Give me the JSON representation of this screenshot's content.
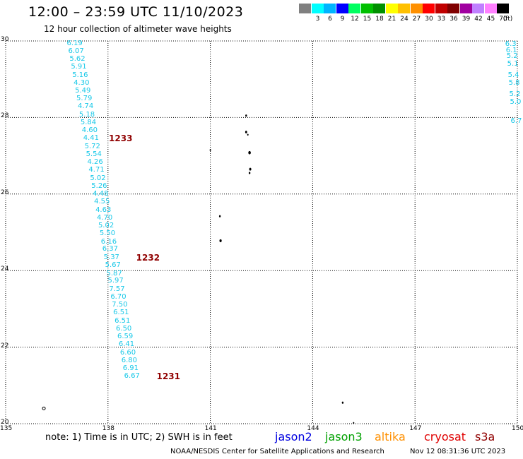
{
  "header": {
    "title": "12:00 – 23:59 UTC 11/10/2023",
    "subtitle": "12 hour collection of altimeter wave heights"
  },
  "colorbar": {
    "unit_label": "(ft)",
    "entries": [
      {
        "label": "",
        "color": "#808080"
      },
      {
        "label": "3",
        "color": "#00ffff"
      },
      {
        "label": "6",
        "color": "#00b4ff"
      },
      {
        "label": "9",
        "color": "#0000ff"
      },
      {
        "label": "12",
        "color": "#00ff60"
      },
      {
        "label": "15",
        "color": "#00c000"
      },
      {
        "label": "18",
        "color": "#009000"
      },
      {
        "label": "21",
        "color": "#ffff00"
      },
      {
        "label": "24",
        "color": "#ffc000"
      },
      {
        "label": "27",
        "color": "#ff9000"
      },
      {
        "label": "30",
        "color": "#ff0000"
      },
      {
        "label": "33",
        "color": "#c00000"
      },
      {
        "label": "36",
        "color": "#800000"
      },
      {
        "label": "39",
        "color": "#a000a0"
      },
      {
        "label": "42",
        "color": "#c080ff"
      },
      {
        "label": "45",
        "color": "#ff80ff"
      },
      {
        "label": "70",
        "color": "#000000"
      }
    ]
  },
  "map": {
    "lon_ticks": [
      "135",
      "138",
      "141",
      "144",
      "147",
      "150"
    ],
    "lat_ticks": [
      "30",
      "28",
      "26",
      "24",
      "22",
      "20"
    ],
    "lon_range": [
      135,
      150
    ],
    "lat_range": [
      20,
      30
    ],
    "wave_color": "#18c8e8",
    "time_label_color": "#900000",
    "track_main": [
      {
        "lat": 29.93,
        "lon": 137.0,
        "v": "6.19"
      },
      {
        "lat": 29.73,
        "lon": 137.04,
        "v": "6.07"
      },
      {
        "lat": 29.52,
        "lon": 137.08,
        "v": "5.62"
      },
      {
        "lat": 29.31,
        "lon": 137.12,
        "v": "5.91"
      },
      {
        "lat": 29.1,
        "lon": 137.16,
        "v": "5.16"
      },
      {
        "lat": 28.9,
        "lon": 137.2,
        "v": "4.30"
      },
      {
        "lat": 28.69,
        "lon": 137.24,
        "v": "5.49"
      },
      {
        "lat": 28.48,
        "lon": 137.28,
        "v": "5.79"
      },
      {
        "lat": 28.28,
        "lon": 137.32,
        "v": "4.74"
      },
      {
        "lat": 28.07,
        "lon": 137.36,
        "v": "5.18"
      },
      {
        "lat": 27.86,
        "lon": 137.4,
        "v": "5.84"
      },
      {
        "lat": 27.65,
        "lon": 137.44,
        "v": "4.60"
      },
      {
        "lat": 27.45,
        "lon": 137.48,
        "v": "4.41"
      },
      {
        "lat": 27.24,
        "lon": 137.52,
        "v": "5.72"
      },
      {
        "lat": 27.03,
        "lon": 137.56,
        "v": "5.54"
      },
      {
        "lat": 26.82,
        "lon": 137.6,
        "v": "4.26"
      },
      {
        "lat": 26.62,
        "lon": 137.64,
        "v": "4.71"
      },
      {
        "lat": 26.41,
        "lon": 137.68,
        "v": "5.02"
      },
      {
        "lat": 26.2,
        "lon": 137.72,
        "v": "5.26"
      },
      {
        "lat": 26.0,
        "lon": 137.76,
        "v": "4.48"
      },
      {
        "lat": 25.79,
        "lon": 137.8,
        "v": "4.55"
      },
      {
        "lat": 25.58,
        "lon": 137.84,
        "v": "4.63"
      },
      {
        "lat": 25.37,
        "lon": 137.88,
        "v": "4.70"
      },
      {
        "lat": 25.17,
        "lon": 137.92,
        "v": "5.02"
      },
      {
        "lat": 24.96,
        "lon": 137.96,
        "v": "5.50"
      },
      {
        "lat": 24.75,
        "lon": 138.0,
        "v": "6.16"
      },
      {
        "lat": 24.55,
        "lon": 138.04,
        "v": "6.37"
      },
      {
        "lat": 24.34,
        "lon": 138.08,
        "v": "5.37"
      },
      {
        "lat": 24.13,
        "lon": 138.12,
        "v": "5.67"
      },
      {
        "lat": 23.92,
        "lon": 138.16,
        "v": "5.87"
      },
      {
        "lat": 23.72,
        "lon": 138.2,
        "v": "5.97"
      },
      {
        "lat": 23.51,
        "lon": 138.24,
        "v": "7.57"
      },
      {
        "lat": 23.3,
        "lon": 138.28,
        "v": "6.70"
      },
      {
        "lat": 23.1,
        "lon": 138.32,
        "v": "7.50"
      },
      {
        "lat": 22.89,
        "lon": 138.36,
        "v": "6.51"
      },
      {
        "lat": 22.68,
        "lon": 138.4,
        "v": "6.51"
      },
      {
        "lat": 22.47,
        "lon": 138.44,
        "v": "6.50"
      },
      {
        "lat": 22.27,
        "lon": 138.48,
        "v": "6.59"
      },
      {
        "lat": 22.06,
        "lon": 138.52,
        "v": "6.41"
      },
      {
        "lat": 21.85,
        "lon": 138.56,
        "v": "6.60"
      },
      {
        "lat": 21.65,
        "lon": 138.6,
        "v": "6.80"
      },
      {
        "lat": 21.44,
        "lon": 138.64,
        "v": "6.91"
      },
      {
        "lat": 21.23,
        "lon": 138.68,
        "v": "6.67"
      }
    ],
    "time_labels": [
      {
        "lat": 27.45,
        "lon": 138.15,
        "t": "1233"
      },
      {
        "lat": 24.34,
        "lon": 138.95,
        "t": "1232"
      },
      {
        "lat": 21.23,
        "lon": 139.55,
        "t": "1231"
      }
    ],
    "track_edge": [
      {
        "lat": 29.9,
        "lon": 149.85,
        "v": "6.3"
      },
      {
        "lat": 29.75,
        "lon": 149.87,
        "v": "6.1"
      },
      {
        "lat": 29.6,
        "lon": 149.89,
        "v": "5.2"
      },
      {
        "lat": 29.4,
        "lon": 149.91,
        "v": "5.1"
      },
      {
        "lat": 29.1,
        "lon": 149.93,
        "v": "5.4"
      },
      {
        "lat": 28.9,
        "lon": 149.95,
        "v": "5.8"
      },
      {
        "lat": 28.6,
        "lon": 149.97,
        "v": "5.2"
      },
      {
        "lat": 28.4,
        "lon": 149.99,
        "v": "5.0"
      },
      {
        "lat": 27.9,
        "lon": 150.01,
        "v": "6.7"
      }
    ],
    "islands": [
      {
        "lat": 28.05,
        "lon": 142.05,
        "r": 1.2
      },
      {
        "lat": 27.62,
        "lon": 142.05,
        "r": 1.4
      },
      {
        "lat": 27.55,
        "lon": 142.1,
        "r": 1.0
      },
      {
        "lat": 27.08,
        "lon": 142.15,
        "r": 1.8
      },
      {
        "lat": 26.65,
        "lon": 142.17,
        "r": 1.5
      },
      {
        "lat": 26.55,
        "lon": 142.15,
        "r": 1.2
      },
      {
        "lat": 27.15,
        "lon": 141.0,
        "r": 1.0
      },
      {
        "lat": 25.42,
        "lon": 141.28,
        "r": 1.2
      },
      {
        "lat": 24.78,
        "lon": 141.3,
        "r": 1.6
      },
      {
        "lat": 20.55,
        "lon": 144.88,
        "r": 1.2
      },
      {
        "lat": 20.02,
        "lon": 145.2,
        "r": 1.0
      }
    ],
    "marker": {
      "lat": 20.4,
      "lon": 136.12
    }
  },
  "footer": {
    "note": "note: 1) Time is in UTC; 2) SWH is in feet",
    "satellites": [
      {
        "name": "jason2",
        "color": "#0000e0"
      },
      {
        "name": "jason3",
        "color": "#00a000"
      },
      {
        "name": "altika",
        "color": "#ff9000"
      },
      {
        "name": "cryosat",
        "color": "#e00000"
      },
      {
        "name": "s3a",
        "color": "#900000"
      }
    ],
    "credit": "NOAA/NESDIS Center for Satellite Applications and Research",
    "timestamp": "Nov 12 08:31:36 UTC 2023"
  }
}
